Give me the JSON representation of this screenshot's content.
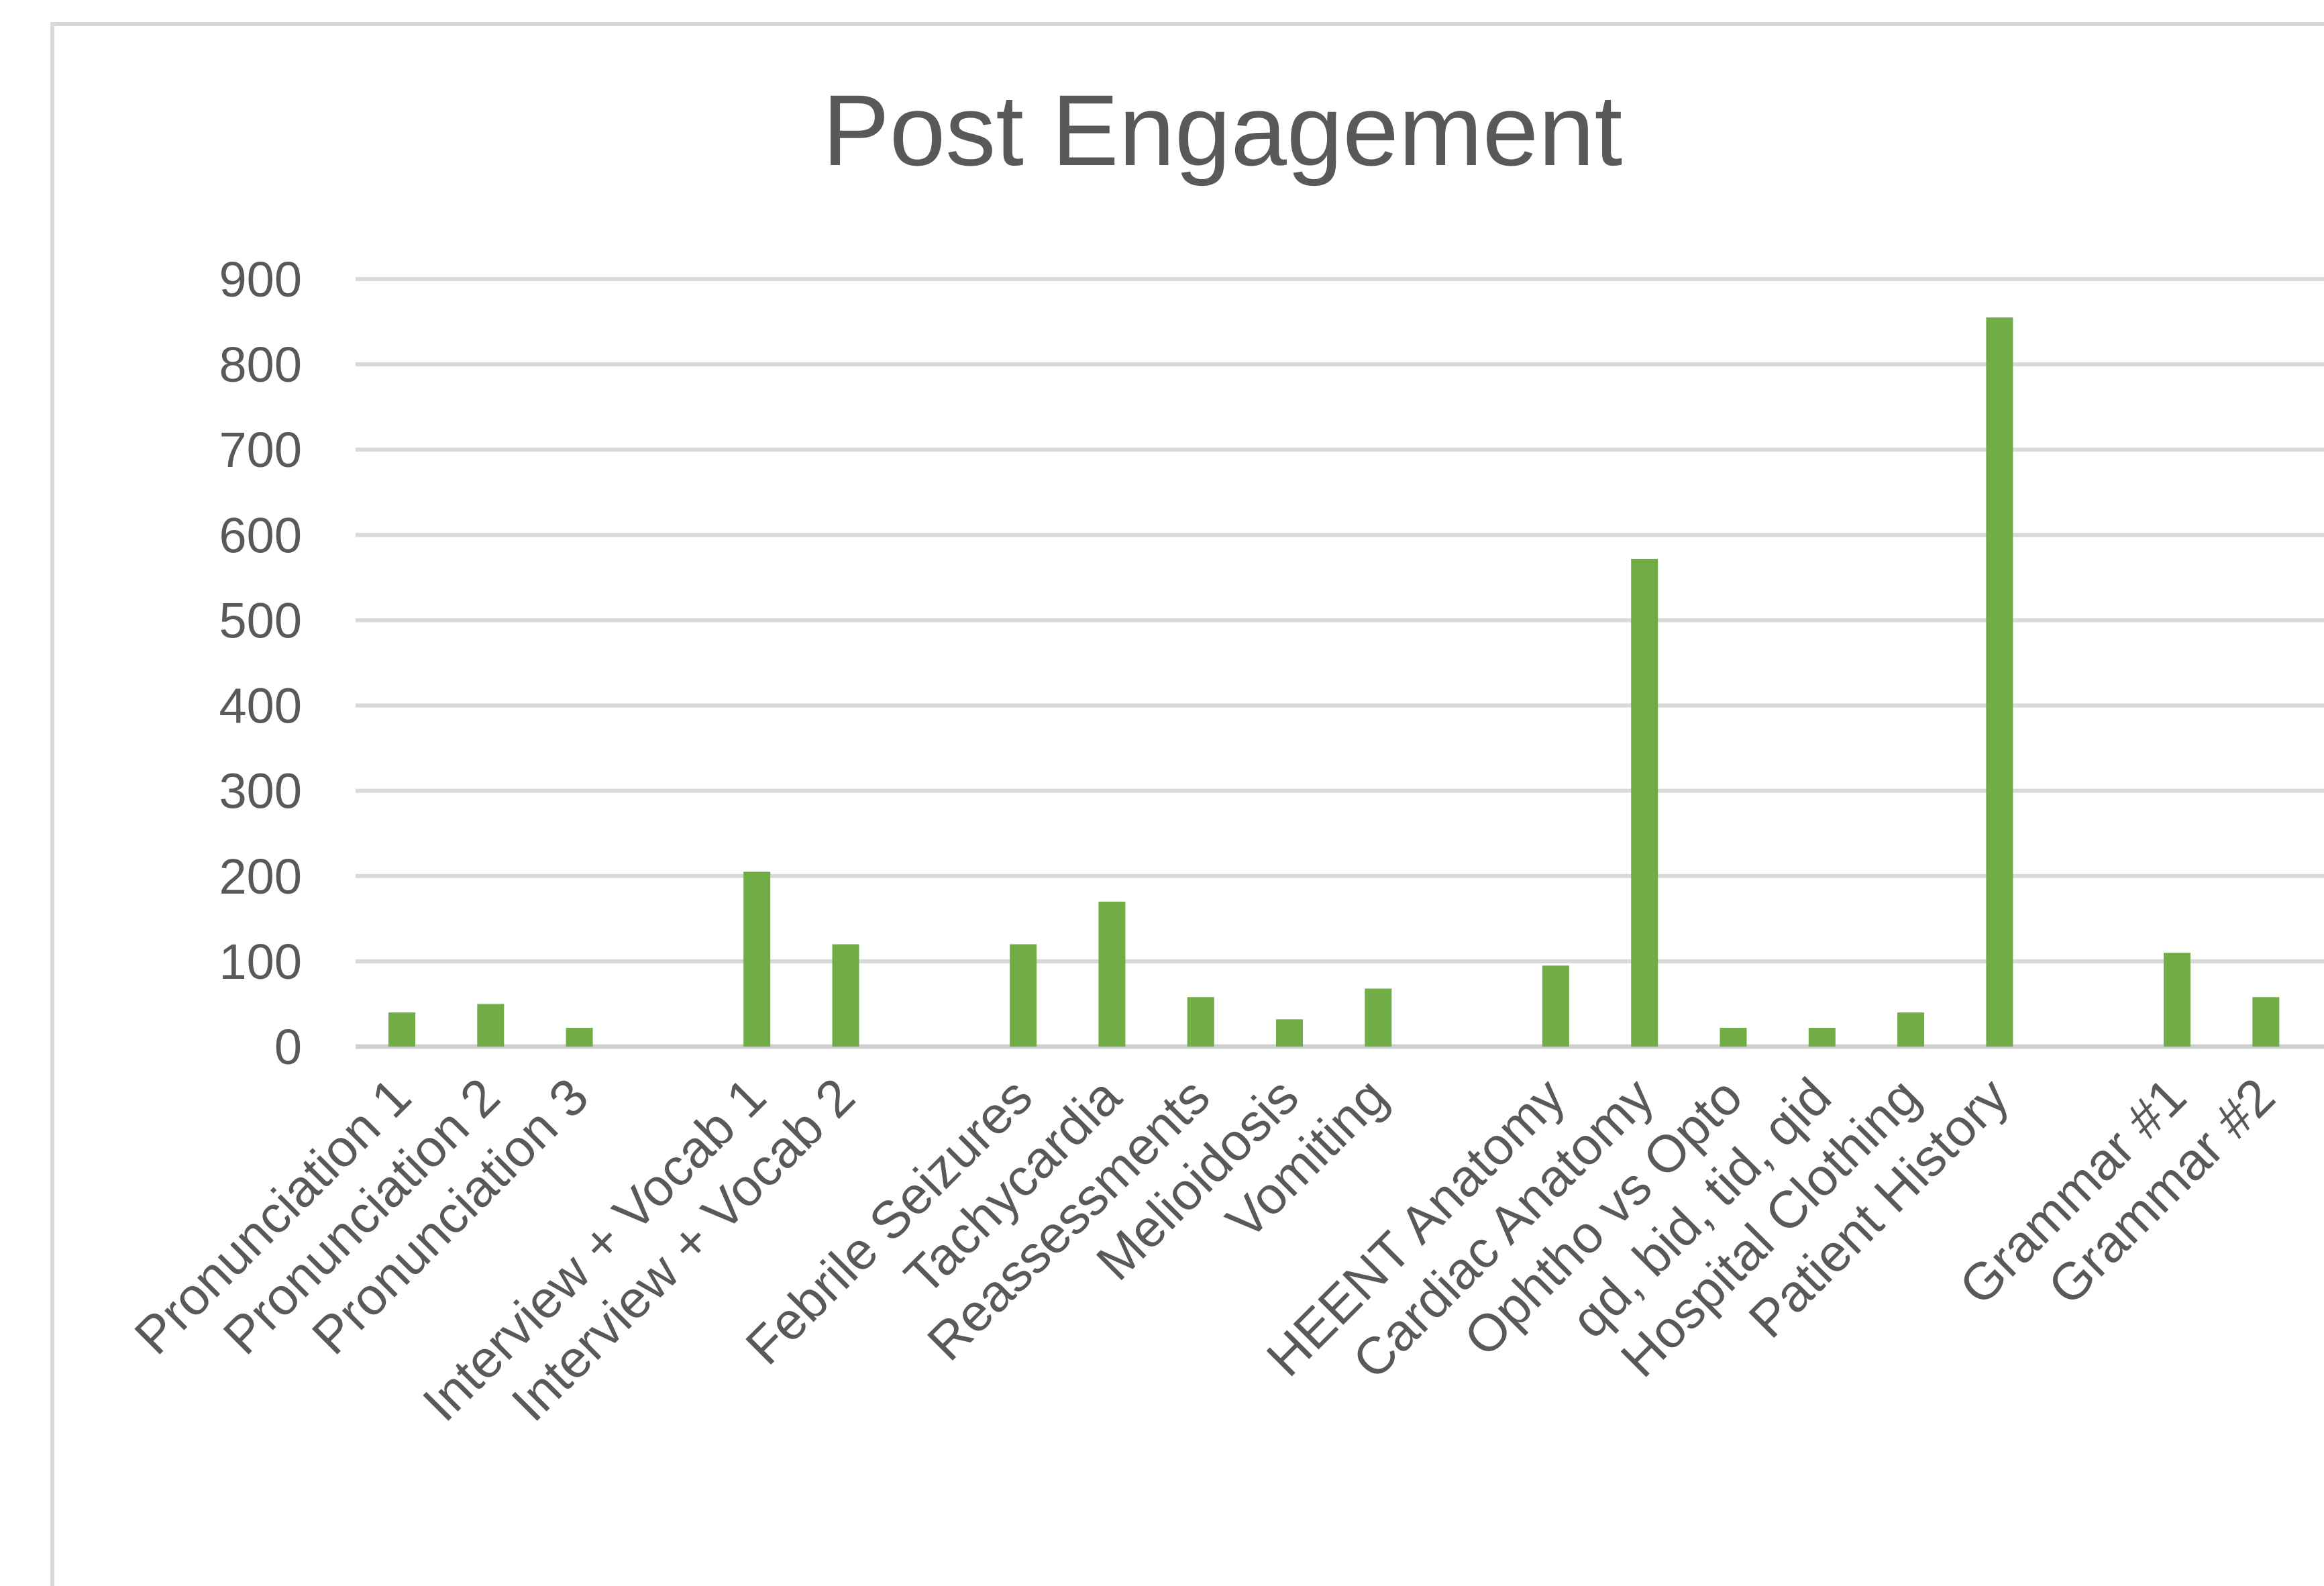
{
  "chart_data": {
    "type": "bar",
    "title": "Post Engagement",
    "xlabel": "",
    "ylabel": "",
    "ylim": [
      0,
      900
    ],
    "yticks": [
      0,
      100,
      200,
      300,
      400,
      500,
      600,
      700,
      800,
      900
    ],
    "grid": true,
    "legend": "none",
    "bar_color": "#70ad47",
    "categories": [
      "Pronunciation 1",
      "Pronunciation 2",
      "Pronunciation 3",
      "",
      "Interview + Vocab 1",
      "Interview + Vocab 2",
      "",
      "Febrile Seizures",
      "Tachycardia",
      "Reassessments",
      "Melioidosis",
      "Vomiting",
      "",
      "HEENT Anatomy",
      "Cardiac Anatomy",
      "Ophtho vs Opto",
      "qd, bid, tid, qid",
      "Hospital Clothing",
      "Patient History",
      "",
      "Grammar #1",
      "Grammar #2"
    ],
    "values": [
      40,
      50,
      22,
      null,
      205,
      120,
      null,
      120,
      170,
      58,
      32,
      68,
      null,
      95,
      572,
      22,
      22,
      40,
      855,
      null,
      110,
      58
    ]
  }
}
